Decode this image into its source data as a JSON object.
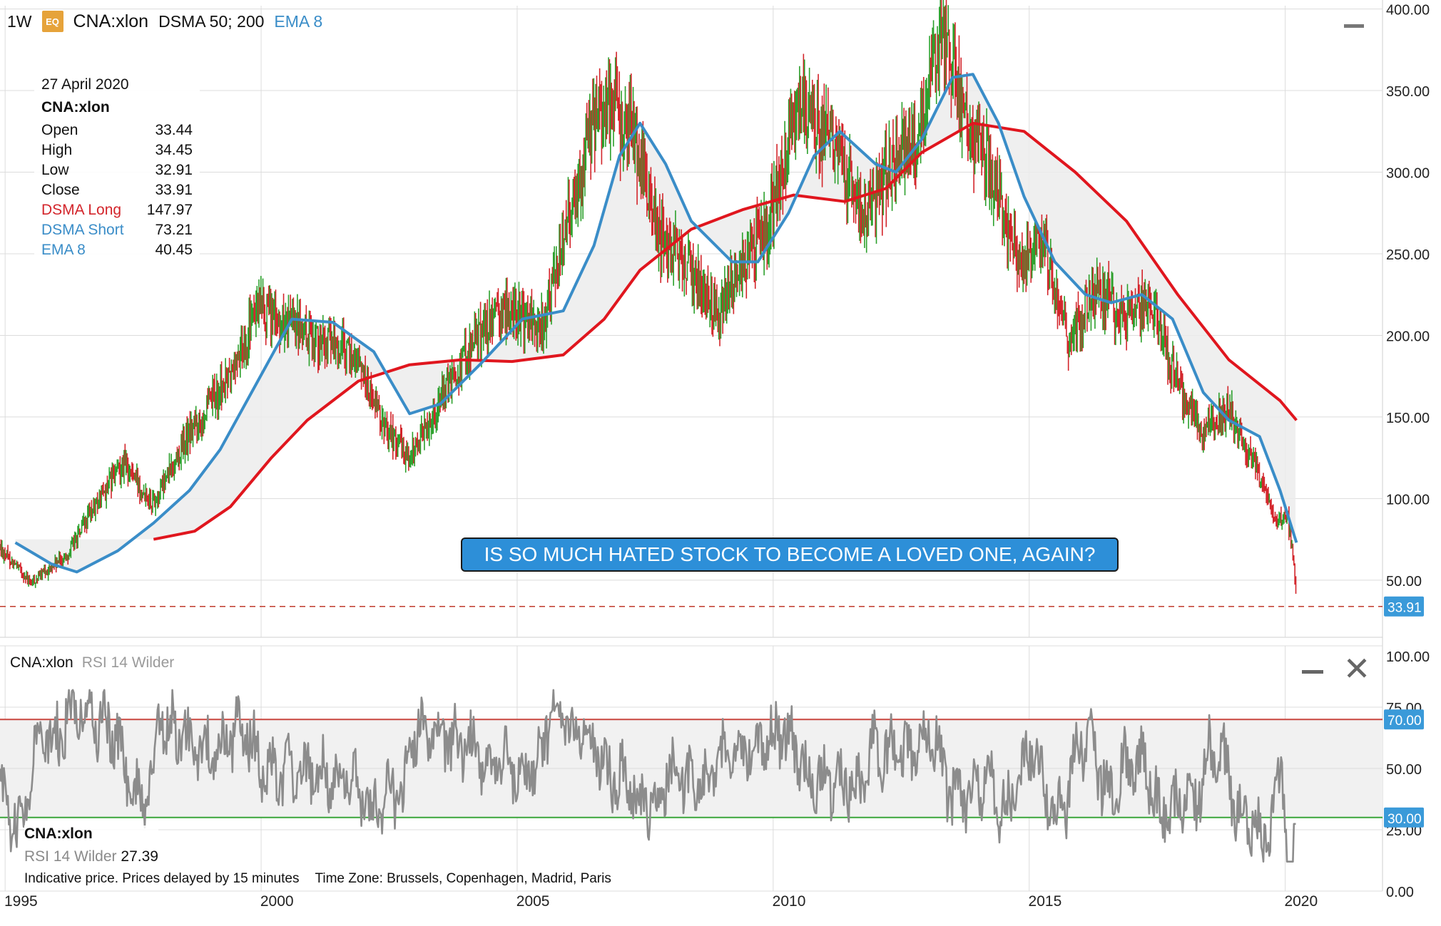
{
  "header": {
    "timeframe": "1W",
    "badge": "EQ",
    "symbol": "CNA:xlon",
    "dsma_label": "DSMA 50; 200",
    "ema_label": "EMA 8"
  },
  "info_panel": {
    "date": "27 April 2020",
    "symbol": "CNA:xlon",
    "rows": [
      {
        "label": "Open",
        "value": "33.44",
        "color": "#111111"
      },
      {
        "label": "High",
        "value": "34.45",
        "color": "#111111"
      },
      {
        "label": "Low",
        "value": "32.91",
        "color": "#111111"
      },
      {
        "label": "Close",
        "value": "33.91",
        "color": "#111111"
      },
      {
        "label": "DSMA Long",
        "value": "147.97",
        "color": "#d3252b"
      },
      {
        "label": "DSMA Short",
        "value": "73.21",
        "color": "#3a8dc8"
      },
      {
        "label": "EMA 8",
        "value": "40.45",
        "color": "#3a8dc8"
      }
    ]
  },
  "callout": "IS SO MUCH HATED STOCK TO BECOME A LOVED ONE, AGAIN?",
  "rsi_panel": {
    "symbol": "CNA:xlon",
    "indicator": "RSI 14 Wilder",
    "legend_symbol": "CNA:xlon",
    "legend_indicator": "RSI 14 Wilder",
    "legend_value": "27.39"
  },
  "footer": {
    "note": "Indicative price. Prices delayed by 15 minutes",
    "timezone": "Time Zone: Brussels, Copenhagen, Madrid, Paris"
  },
  "colors": {
    "up": "#2ca02c",
    "down": "#d3252b",
    "dsma_long": "#e0161e",
    "dsma_short": "#3a8dc8",
    "rsi_line": "#8c8c8c",
    "band_fill": "#ececec",
    "grid": "#dcdcdc",
    "last_price_tag": "#3a9ad9",
    "rsi_upper": "#c9463f",
    "rsi_lower": "#3aa53a"
  },
  "chart_data": [
    {
      "type": "candlestick",
      "title": "CNA:xlon",
      "interval": "1W",
      "x_ticks": [
        "1995",
        "2000",
        "2005",
        "2010",
        "2015",
        "2020"
      ],
      "x_tick_years": [
        1995,
        2000,
        2005,
        2010,
        2015,
        2020
      ],
      "xlim": [
        1995,
        2022
      ],
      "y_ticks": [
        "50.00",
        "100.00",
        "150.00",
        "200.00",
        "250.00",
        "300.00",
        "350.00",
        "400.00"
      ],
      "ylim": [
        15,
        402
      ],
      "last_price": "33.91",
      "price_path": [
        [
          1995.0,
          70
        ],
        [
          1995.6,
          48
        ],
        [
          1996.3,
          65
        ],
        [
          1996.8,
          92
        ],
        [
          1997.4,
          122
        ],
        [
          1998.0,
          98
        ],
        [
          1998.7,
          140
        ],
        [
          1999.5,
          175
        ],
        [
          2000.0,
          215
        ],
        [
          2000.7,
          205
        ],
        [
          2001.4,
          195
        ],
        [
          2002.0,
          185
        ],
        [
          2002.4,
          150
        ],
        [
          2003.0,
          125
        ],
        [
          2003.5,
          155
        ],
        [
          2004.3,
          200
        ],
        [
          2004.9,
          215
        ],
        [
          2005.6,
          205
        ],
        [
          2006.0,
          260
        ],
        [
          2006.5,
          320
        ],
        [
          2006.8,
          345
        ],
        [
          2007.4,
          320
        ],
        [
          2007.9,
          260
        ],
        [
          2008.4,
          245
        ],
        [
          2009.0,
          215
        ],
        [
          2009.5,
          240
        ],
        [
          2010.0,
          270
        ],
        [
          2010.6,
          340
        ],
        [
          2011.2,
          320
        ],
        [
          2011.9,
          275
        ],
        [
          2012.4,
          305
        ],
        [
          2013.0,
          330
        ],
        [
          2013.4,
          385
        ],
        [
          2013.9,
          330
        ],
        [
          2014.4,
          300
        ],
        [
          2014.9,
          240
        ],
        [
          2015.4,
          255
        ],
        [
          2015.9,
          195
        ],
        [
          2016.4,
          230
        ],
        [
          2016.9,
          210
        ],
        [
          2017.5,
          220
        ],
        [
          2018.0,
          170
        ],
        [
          2018.5,
          140
        ],
        [
          2019.0,
          155
        ],
        [
          2019.5,
          120
        ],
        [
          2019.9,
          85
        ],
        [
          2020.15,
          90
        ],
        [
          2020.28,
          55
        ],
        [
          2020.32,
          34
        ]
      ],
      "series": [
        {
          "name": "DSMA Long",
          "color": "#e0161e",
          "points": [
            [
              1998.0,
              75
            ],
            [
              1998.8,
              80
            ],
            [
              1999.5,
              95
            ],
            [
              2000.3,
              125
            ],
            [
              2001.0,
              148
            ],
            [
              2002.0,
              172
            ],
            [
              2003.0,
              182
            ],
            [
              2004.0,
              185
            ],
            [
              2005.0,
              184
            ],
            [
              2006.0,
              188
            ],
            [
              2006.8,
              210
            ],
            [
              2007.5,
              240
            ],
            [
              2008.5,
              265
            ],
            [
              2009.5,
              277
            ],
            [
              2010.5,
              286
            ],
            [
              2011.5,
              282
            ],
            [
              2012.3,
              290
            ],
            [
              2013.0,
              312
            ],
            [
              2014.0,
              330
            ],
            [
              2015.0,
              325
            ],
            [
              2016.0,
              300
            ],
            [
              2017.0,
              270
            ],
            [
              2018.0,
              225
            ],
            [
              2019.0,
              185
            ],
            [
              2020.0,
              160
            ],
            [
              2020.32,
              148
            ]
          ]
        },
        {
          "name": "DSMA Short",
          "color": "#3a8dc8",
          "points": [
            [
              1995.3,
              73
            ],
            [
              1996.0,
              60
            ],
            [
              1996.5,
              55
            ],
            [
              1997.3,
              68
            ],
            [
              1998.0,
              85
            ],
            [
              1998.7,
              105
            ],
            [
              1999.3,
              130
            ],
            [
              2000.0,
              170
            ],
            [
              2000.7,
              210
            ],
            [
              2001.5,
              208
            ],
            [
              2002.3,
              190
            ],
            [
              2003.0,
              152
            ],
            [
              2003.6,
              158
            ],
            [
              2004.4,
              183
            ],
            [
              2005.2,
              210
            ],
            [
              2006.0,
              215
            ],
            [
              2006.6,
              255
            ],
            [
              2007.1,
              310
            ],
            [
              2007.5,
              330
            ],
            [
              2008.0,
              305
            ],
            [
              2008.5,
              270
            ],
            [
              2009.3,
              245
            ],
            [
              2009.8,
              245
            ],
            [
              2010.4,
              275
            ],
            [
              2010.9,
              310
            ],
            [
              2011.4,
              325
            ],
            [
              2012.1,
              305
            ],
            [
              2012.5,
              300
            ],
            [
              2013.0,
              320
            ],
            [
              2013.6,
              358
            ],
            [
              2014.0,
              360
            ],
            [
              2014.5,
              330
            ],
            [
              2015.0,
              285
            ],
            [
              2015.6,
              245
            ],
            [
              2016.2,
              225
            ],
            [
              2016.7,
              220
            ],
            [
              2017.3,
              225
            ],
            [
              2017.9,
              210
            ],
            [
              2018.5,
              165
            ],
            [
              2019.0,
              148
            ],
            [
              2019.6,
              138
            ],
            [
              2020.0,
              105
            ],
            [
              2020.32,
              73
            ]
          ]
        }
      ]
    },
    {
      "type": "line",
      "title": "RSI 14 Wilder",
      "x_ticks": [
        "1995",
        "2000",
        "2005",
        "2010",
        "2015",
        "2020"
      ],
      "x_tick_years": [
        1995,
        2000,
        2005,
        2010,
        2015,
        2020
      ],
      "xlim": [
        1995,
        2022
      ],
      "y_ticks": [
        "0.00",
        "25.00",
        "50.00",
        "75.00",
        "100.00"
      ],
      "ylim": [
        0,
        100
      ],
      "overbought": "70.00",
      "oversold": "30.00",
      "overbought_value": 70,
      "oversold_value": 30,
      "last_value": 27.39
    }
  ]
}
